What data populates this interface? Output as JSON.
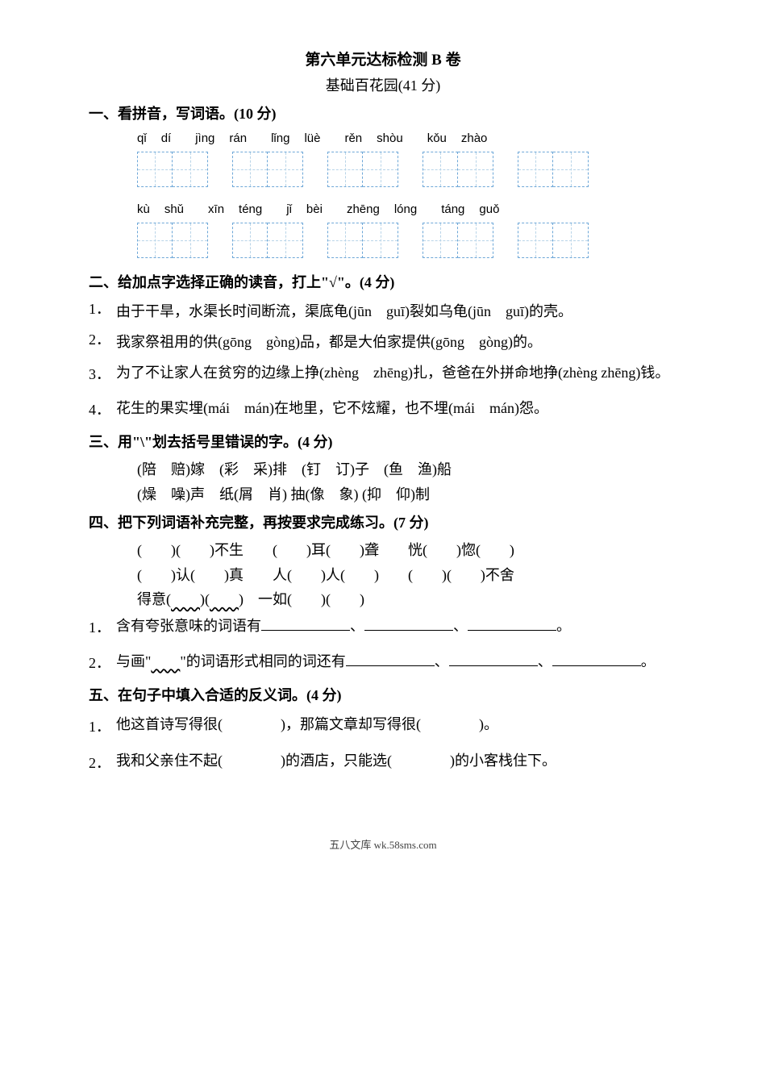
{
  "title": "第六单元达标检测 B 卷",
  "subtitle": "基础百花园(41 分)",
  "section1": {
    "head": "一、看拼音，写词语。(10 分)",
    "row1": [
      [
        "qǐ",
        "dí"
      ],
      [
        "jìng",
        "rán"
      ],
      [
        "lǐng",
        "lüè"
      ],
      [
        "rěn",
        "shòu"
      ],
      [
        "kǒu",
        "zhào"
      ]
    ],
    "row2": [
      [
        "kù",
        "shǔ"
      ],
      [
        "xīn",
        "téng"
      ],
      [
        "jǐ",
        "bèi"
      ],
      [
        "zhēng",
        "lóng"
      ],
      [
        "táng",
        "guǒ"
      ]
    ]
  },
  "section2": {
    "head": "二、给加点字选择正确的读音，打上\"√\"。(4 分)",
    "q1_a": "1．",
    "q1_b": "由于干旱，水渠长时间断流，渠底",
    "q1_gui": "龟",
    "q1_c": "(jūn　guī)裂如乌",
    "q1_gui2": "龟",
    "q1_d": "(jūn　guī)的壳。",
    "q2_a": "2．",
    "q2_b": "我家祭祖用的",
    "q2_gong": "供",
    "q2_c": "(gōng　gòng)品，都是大伯家提",
    "q2_gong2": "供",
    "q2_d": "(gōng　gòng)的。",
    "q3_a": "3．",
    "q3_b": "为了不让家人在贫穷的边缘上",
    "q3_zheng": "挣",
    "q3_c": "(zhèng　zhēng)扎，爸爸在外拼命地",
    "q3_zheng2": "挣",
    "q3_d": "(zhèng zhēng)钱。",
    "q4_a": "4．",
    "q4_b": "花生的果实",
    "q4_mai": "埋",
    "q4_c": "(mái　mán)在地里，它不炫耀，也不",
    "q4_mai2": "埋",
    "q4_d": "(mái　mán)怨。"
  },
  "section3": {
    "head": "三、用\"\\\"划去括号里错误的字。(4 分)",
    "line1": "(陪　赔)嫁　(彩　采)排　(钉　订)子　(鱼　渔)船",
    "line2": "(燥　噪)声　纸(屑　肖) 抽(像　象) (抑　仰)制"
  },
  "section4": {
    "head": "四、把下列词语补充完整，再按要求完成练习。(7 分)",
    "line1": "(　　)(　　)不生　　(　　)耳(　　)聋　　恍(　　)惚(　　)",
    "line2": "(　　)认(　　)真　　人(　　)人(　　)　　(　　)(　　)不舍",
    "line3_a": "得意(",
    "line3_b": ")(",
    "line3_c": ")　一如(　　)(　　)",
    "q1_a": "1．",
    "q1_b": "含有夸张意味的词语有",
    "sep": "、",
    "period": "。",
    "q2_a": "2．",
    "q2_b": "与画\"",
    "q2_c": "\"的词语形式相同的词还有"
  },
  "section5": {
    "head": "五、在句子中填入合适的反义词。(4 分)",
    "q1_a": "1．",
    "q1_b": "他这首诗写得很(　　　　)，那篇文章却写得很(　　　　)。",
    "q2_a": "2．",
    "q2_b": "我和父亲住不起(　　　　)的酒店，只能选(　　　　)的小客栈住下。"
  },
  "footer": "五八文库 wk.58sms.com"
}
